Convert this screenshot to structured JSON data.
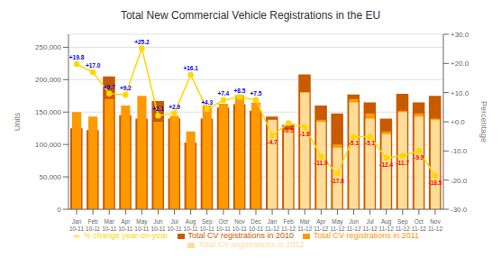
{
  "chart_data": {
    "type": "bar",
    "title": "Total New Commercial Vehicle Registrations in the EU",
    "ylabel": "Units",
    "y2label": "Percentage",
    "categories": [
      "Jan\n10-11",
      "Feb\n10-11",
      "Mar\n10-11",
      "Apr\n10-11",
      "May\n10-11",
      "Jun\n10-11",
      "Jul\n10-11",
      "Aug\n10-11",
      "Sep\n10-11",
      "Oct\n10-11",
      "Nov\n10-11",
      "Dec\n10-11",
      "Jan\n11-12",
      "Feb\n11-12",
      "Mar\n11-12",
      "Apr\n11-12",
      "May\n11-12",
      "Jun\n11-12",
      "Jul\n11-12",
      "Aug\n11-12",
      "Sep\n11-12",
      "Oct\n11-12",
      "Nov\n11-12"
    ],
    "series": [
      {
        "name": "Total CV registrations in 2010",
        "color": "#C85A00",
        "values": [
          125000,
          122000,
          205000,
          145000,
          140000,
          167000,
          140000,
          103000,
          140000,
          157000,
          162000,
          152000,
          143000,
          130000,
          208000,
          160000,
          148000,
          177000,
          165000,
          140000,
          178000,
          165000,
          175000
        ]
      },
      {
        "name": "Total CV registrations in 2011",
        "color": "#FF9900",
        "values": [
          150000,
          143000,
          170000,
          160000,
          175000,
          135000,
          144000,
          120000,
          160000,
          163000,
          176000,
          165000,
          135000,
          123000,
          181000,
          138000,
          100000,
          170000,
          148000,
          120000,
          152000,
          148000,
          140000
        ]
      },
      {
        "name": "Total CV registrations in 2012",
        "color": "#FFDD99",
        "values": [
          null,
          null,
          null,
          null,
          null,
          null,
          null,
          null,
          null,
          null,
          null,
          null,
          138000,
          122000,
          180000,
          135000,
          95000,
          165000,
          140000,
          116000,
          150000,
          143000,
          138000
        ]
      },
      {
        "name": "% change year-on-year",
        "type": "line",
        "axis": "y2",
        "color": "#FFD700",
        "marker": "circle",
        "data_labels": true,
        "values": [
          19.8,
          17.0,
          9.7,
          9.2,
          25.2,
          2.1,
          2.9,
          16.1,
          4.3,
          7.4,
          8.5,
          7.5,
          -4.7,
          -0.5,
          -1.8,
          -11.9,
          -17.8,
          -5.1,
          -5.1,
          -12.4,
          -11.7,
          -9.9,
          -18.5
        ],
        "value_labels": [
          "+19.8",
          "+17.0",
          "+9.7",
          "+9.2",
          "+25.2",
          "+2.1",
          "+2.9",
          "+16.1",
          "+4.3",
          "+7.4",
          "+8.5",
          "+7.5",
          "-4.7",
          "-0.5",
          "-1.8",
          "-11.9",
          "-17.8",
          "-5.1",
          "-5.1",
          "-12.4",
          "-11.7",
          "-9.9",
          "-18.5"
        ]
      }
    ],
    "ylim": [
      0,
      270000
    ],
    "yticks": [
      0,
      {
        "value": 50000,
        "label": "50,000"
      },
      {
        "value": 100000,
        "label": "100,000"
      },
      {
        "value": 150000,
        "label": "150,000"
      },
      {
        "value": 200000,
        "label": "200,000"
      },
      {
        "value": 250000,
        "label": "250,000"
      }
    ],
    "y2lim": [
      -30,
      30
    ],
    "y2ticks": [
      {
        "value": -30,
        "label": "-30.0"
      },
      {
        "value": -20,
        "label": "-20.0"
      },
      {
        "value": -10,
        "label": "-10.0"
      },
      {
        "value": 0,
        "label": "+0.0"
      },
      {
        "value": 10,
        "label": "+10.0"
      },
      {
        "value": 20,
        "label": "+20.0"
      },
      {
        "value": 30,
        "label": "+30.0"
      }
    ],
    "grid": true,
    "legend": "bottom"
  }
}
